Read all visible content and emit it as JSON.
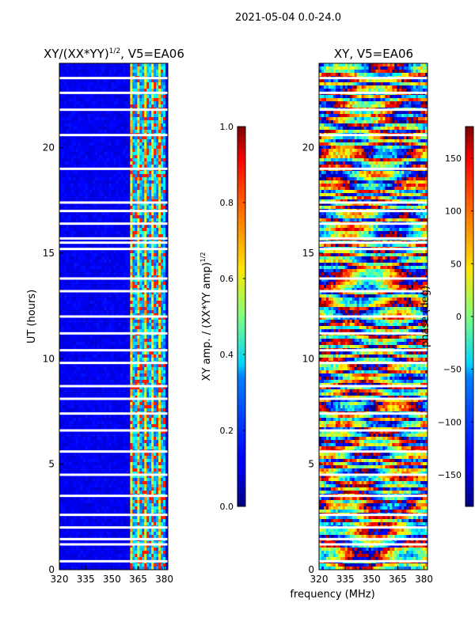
{
  "figure": {
    "suptitle": "2021-05-04 0.0-24.0",
    "xlabel_shared": "frequency (MHz)"
  },
  "chart_data": [
    {
      "type": "heatmap",
      "title_main": "XY/(XX*YY)",
      "title_sup": "1/2",
      "title_tail": ", V5=EA06",
      "ylabel": "UT (hours)",
      "xlim": [
        320,
        382
      ],
      "ylim": [
        0,
        24
      ],
      "xticks": [
        320,
        335,
        350,
        365,
        380
      ],
      "yticks": [
        0,
        5,
        10,
        15,
        20
      ],
      "signal_band_mhz": [
        360,
        380
      ],
      "flagged_gaps_hours": [
        0.4,
        1.2,
        1.45,
        2.0,
        2.6,
        3.5,
        4.5,
        5.6,
        6.6,
        7.4,
        8.1,
        8.7,
        9.8,
        10.4,
        11.2,
        12.0,
        13.2,
        13.8,
        15.2,
        15.5,
        15.7,
        16.4,
        17.0,
        17.4,
        19.0,
        20.6,
        21.8,
        22.6,
        23.3
      ],
      "colorbar": {
        "label_main": "XY amp. / (XX*YY amp)",
        "label_sup": "1/2",
        "range": [
          0.0,
          1.0
        ],
        "ticks": [
          "0.0",
          "0.2",
          "0.4",
          "0.6",
          "0.8",
          "1.0"
        ],
        "colormap": "jet"
      }
    },
    {
      "type": "heatmap",
      "title": "XY, V5=EA06",
      "xlim": [
        320,
        382
      ],
      "ylim": [
        0,
        24
      ],
      "xticks": [
        320,
        335,
        350,
        365,
        380
      ],
      "yticks": [
        0,
        5,
        10,
        15,
        20
      ],
      "flagged_gaps_hours": [
        0.4,
        1.2,
        1.45,
        2.0,
        2.6,
        3.5,
        4.5,
        5.6,
        6.6,
        7.4,
        8.1,
        8.7,
        9.8,
        10.4,
        11.2,
        12.0,
        13.2,
        13.8,
        15.2,
        15.5,
        15.7,
        16.4,
        17.0,
        17.4,
        19.0,
        20.6,
        21.8,
        22.6,
        23.3
      ],
      "colorbar": {
        "label": "phase (deg)",
        "range": [
          -180,
          180
        ],
        "ticks": [
          "-150",
          "-100",
          "-50",
          "0",
          "50",
          "100",
          "150"
        ],
        "colormap": "jet"
      }
    }
  ]
}
